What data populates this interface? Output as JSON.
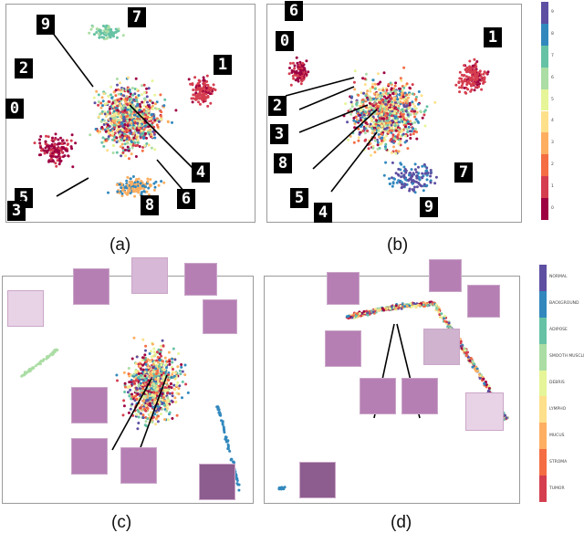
{
  "captions": [
    "(a)",
    "(b)",
    "(c)",
    "(d)"
  ],
  "chart_data": [
    {
      "type": "scatter",
      "panel": "a",
      "description": "t-SNE embedding of digit classes with digit-image annotations",
      "annotations": [
        "9",
        "7",
        "2",
        "1",
        "0",
        "5",
        "3",
        "8",
        "6",
        "4"
      ],
      "legend_classes": [
        "0",
        "1",
        "2",
        "3",
        "4",
        "5",
        "6",
        "7",
        "8",
        "9"
      ]
    },
    {
      "type": "scatter",
      "panel": "b",
      "annotations": [
        "6",
        "0",
        "1",
        "2",
        "3",
        "8",
        "5",
        "4",
        "7",
        "9"
      ],
      "colorbar_labels": [
        "9",
        "8",
        "7",
        "6",
        "5",
        "4",
        "3",
        "2",
        "1",
        "0"
      ]
    },
    {
      "type": "scatter",
      "panel": "c",
      "thumbnails": 9
    },
    {
      "type": "scatter",
      "panel": "d",
      "thumbnails": 9,
      "colorbar_labels": [
        "NORMAL",
        "BACKGROUND",
        "ADIPOSE",
        "SMOOTH MUSCLE",
        "DEBRIS",
        "LYMPHO",
        "MUCUS",
        "STROMA",
        "TUMOR"
      ]
    }
  ],
  "colors": {
    "palette": [
      "#9e0142",
      "#d53e4f",
      "#f46d43",
      "#fdae61",
      "#fee08b",
      "#e6f598",
      "#abdda4",
      "#66c2a5",
      "#3288bd",
      "#5e4fa2"
    ],
    "tissue_thumb": "#b57fb4"
  }
}
